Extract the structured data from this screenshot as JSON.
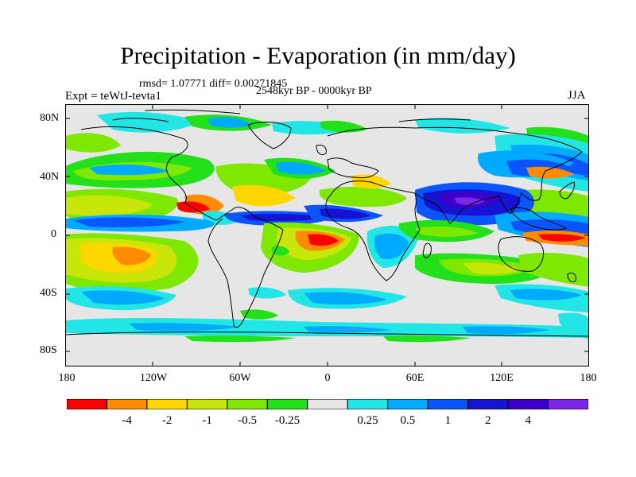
{
  "title": "Precipitation - Evaporation (in mm/day)",
  "stats": "rmsd= 1.07771 diff= 0.00271845",
  "period": "2548kyr BP - 0000kyr BP",
  "experiment": "Expt = teWtJ-tevta1",
  "season": "JJA",
  "axes": {
    "y_ticks": [
      "80N",
      "40N",
      "0",
      "40S",
      "80S"
    ],
    "x_ticks": [
      "180",
      "120W",
      "60W",
      "0",
      "60E",
      "120E",
      "180"
    ]
  },
  "colorbar": {
    "colors": [
      "#ff0000",
      "#ff8c00",
      "#ffd700",
      "#c8e60a",
      "#7ee800",
      "#22e01a",
      "#e6e6e6",
      "#22e6e6",
      "#00aaff",
      "#0a55ff",
      "#1414d2",
      "#3c00c8",
      "#7a28e6"
    ],
    "labels": [
      "-4",
      "-2",
      "-1",
      "-0.5",
      "-0.25",
      "0.25",
      "0.5",
      "1",
      "2",
      "4"
    ]
  },
  "colors": {
    "background_field": "#e6e6e6",
    "coastline": "#000000"
  }
}
